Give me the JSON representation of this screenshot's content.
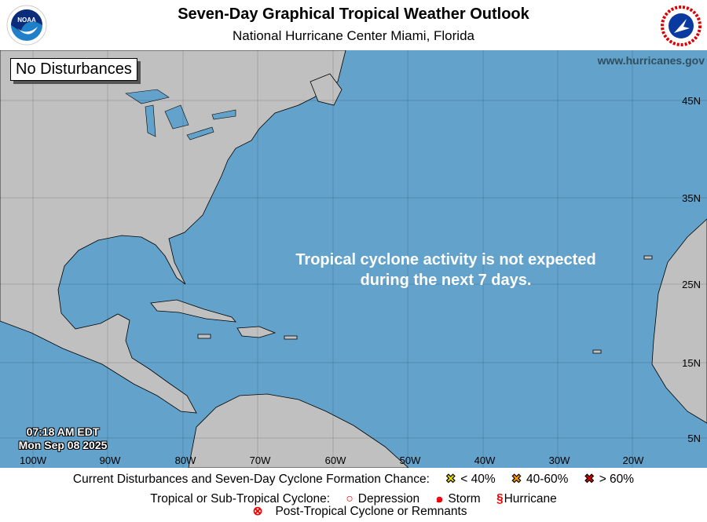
{
  "header": {
    "title": "Seven-Day Graphical Tropical Weather Outlook",
    "subtitle": "National Hurricane Center  Miami, Florida",
    "left_logo": "NOAA",
    "right_logo": "NATIONAL WEATHER SERVICE"
  },
  "map": {
    "status_box": "No Disturbances",
    "website": "www.hurricanes.gov",
    "message_line1": "Tropical cyclone activity is not expected",
    "message_line2": "during the next 7 days.",
    "time": "07:18 AM EDT",
    "date": "Mon Sep 08 2025",
    "longitudes": [
      "100W",
      "90W",
      "80W",
      "70W",
      "60W",
      "50W",
      "40W",
      "30W",
      "20W"
    ],
    "latitudes": [
      "45N",
      "35N",
      "25N",
      "15N",
      "5N"
    ],
    "colors": {
      "ocean": "#62a2cb",
      "land": "#c0c0c0"
    }
  },
  "legend": {
    "row1_label": "Current Disturbances and Seven-Day Cyclone Formation Chance:",
    "low": "< 40%",
    "medium": "40-60%",
    "high": "> 60%",
    "low_color": "#ffff00",
    "medium_color": "#ff9900",
    "high_color": "#dd0000",
    "row2_label": "Tropical or Sub-Tropical Cyclone:",
    "depression": "Depression",
    "storm": "Storm",
    "hurricane": "Hurricane",
    "remnants": "Post-Tropical Cyclone or Remnants"
  }
}
